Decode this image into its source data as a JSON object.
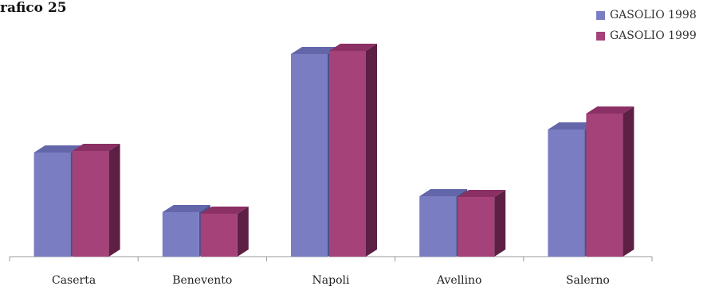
{
  "chart_data": {
    "type": "bar",
    "title": "rafico 25",
    "categories": [
      "Caserta",
      "Benevento",
      "Napoli",
      "Avellino",
      "Salerno"
    ],
    "series": [
      {
        "name": "GASOLIO 1998",
        "values": [
          131,
          56,
          255,
          76,
          160
        ]
      },
      {
        "name": "GASOLIO 1999",
        "values": [
          133,
          54,
          259,
          75,
          180
        ]
      }
    ],
    "ylim": [
      0,
      275
    ],
    "grid": false,
    "legend_position": "top-right",
    "colors": {
      "s0_front": "#7b7dc3",
      "s0_top": "#6466aa",
      "s0_side": "#4c4e8c",
      "s1_front": "#a44279",
      "s1_top": "#8b3064",
      "s1_side": "#5e1f44",
      "axis": "#9a9a9a"
    }
  }
}
